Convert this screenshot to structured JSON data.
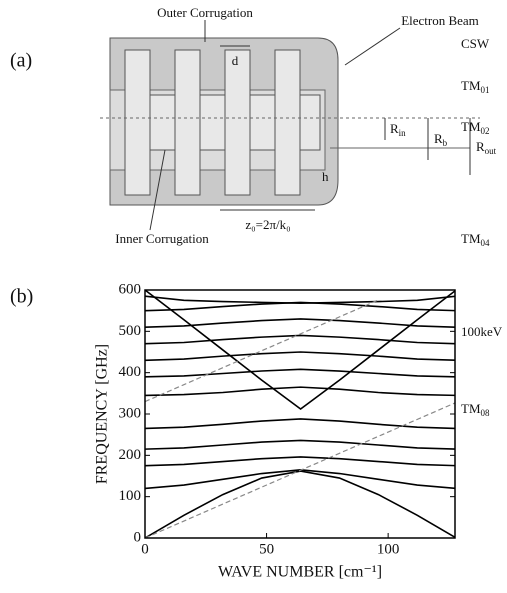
{
  "panel_a": {
    "label": "(a)",
    "outer": "Outer Corrugation",
    "beam": "Electron Beam",
    "d": "d",
    "h": "h",
    "r_in": {
      "text": "R",
      "sub": "in"
    },
    "r_b": {
      "text": "R",
      "sub": "b"
    },
    "r_out": {
      "text": "R",
      "sub": "out"
    },
    "period": "z₀=2π/k₀",
    "inner": "Inner Corrugation"
  },
  "chart_data": {
    "type": "line",
    "label": "(b)",
    "x_label": "WAVE NUMBER  [cm⁻¹]",
    "y_label": "FREQUENCY  [GHz]",
    "x": [
      0,
      16,
      32,
      48,
      64,
      80,
      96,
      112,
      128
    ],
    "series": [
      {
        "color": "#000",
        "values": [
          0,
          55,
          105,
          145,
          162,
          145,
          105,
          55,
          0
        ]
      },
      {
        "color": "#000",
        "values": [
          120,
          128,
          142,
          156,
          165,
          156,
          142,
          128,
          120
        ]
      },
      {
        "color": "#000",
        "values": [
          175,
          178,
          185,
          192,
          196,
          192,
          185,
          178,
          175
        ]
      },
      {
        "color": "#000",
        "values": [
          215,
          218,
          225,
          232,
          236,
          232,
          225,
          218,
          215
        ]
      },
      {
        "color": "#000",
        "values": [
          265,
          268,
          275,
          283,
          288,
          283,
          275,
          268,
          265
        ]
      },
      {
        "color": "#000",
        "values": [
          600,
          528,
          455,
          382,
          312,
          382,
          455,
          528,
          600
        ]
      },
      {
        "color": "#000",
        "values": [
          345,
          347,
          352,
          360,
          365,
          360,
          352,
          347,
          345
        ]
      },
      {
        "color": "#000",
        "values": [
          390,
          392,
          398,
          404,
          408,
          404,
          398,
          392,
          390
        ]
      },
      {
        "color": "#000",
        "values": [
          430,
          433,
          440,
          446,
          450,
          446,
          440,
          433,
          430
        ]
      },
      {
        "color": "#000",
        "values": [
          470,
          473,
          480,
          486,
          490,
          486,
          480,
          473,
          470
        ]
      },
      {
        "color": "#000",
        "values": [
          510,
          513,
          520,
          526,
          530,
          526,
          520,
          513,
          510
        ]
      },
      {
        "color": "#000",
        "values": [
          550,
          553,
          560,
          566,
          570,
          566,
          560,
          553,
          550
        ]
      },
      {
        "color": "#000",
        "values": [
          585,
          575,
          572,
          570,
          568,
          570,
          572,
          575,
          585
        ]
      },
      {
        "color": "#888",
        "dash": true,
        "values": [
          0,
          41,
          82,
          123,
          164,
          205,
          246,
          287,
          328
        ]
      },
      {
        "color": "#888",
        "dash": true,
        "values": [
          330,
          371,
          412,
          453,
          494,
          535,
          576,
          null,
          null
        ]
      }
    ],
    "annotations": [
      {
        "text": "TM",
        "sub": "08"
      },
      {
        "text": "100keV"
      },
      {
        "text": "TM",
        "sub": "04"
      },
      {
        "text": "TM",
        "sub": "02"
      },
      {
        "text": "TM",
        "sub": "01"
      },
      {
        "text": "CSW"
      }
    ],
    "xlim": [
      0,
      127.5
    ],
    "ylim": [
      0,
      600
    ],
    "xticks": [
      0,
      50,
      100
    ],
    "yticks": [
      0,
      100,
      200,
      300,
      400,
      500,
      600
    ]
  }
}
